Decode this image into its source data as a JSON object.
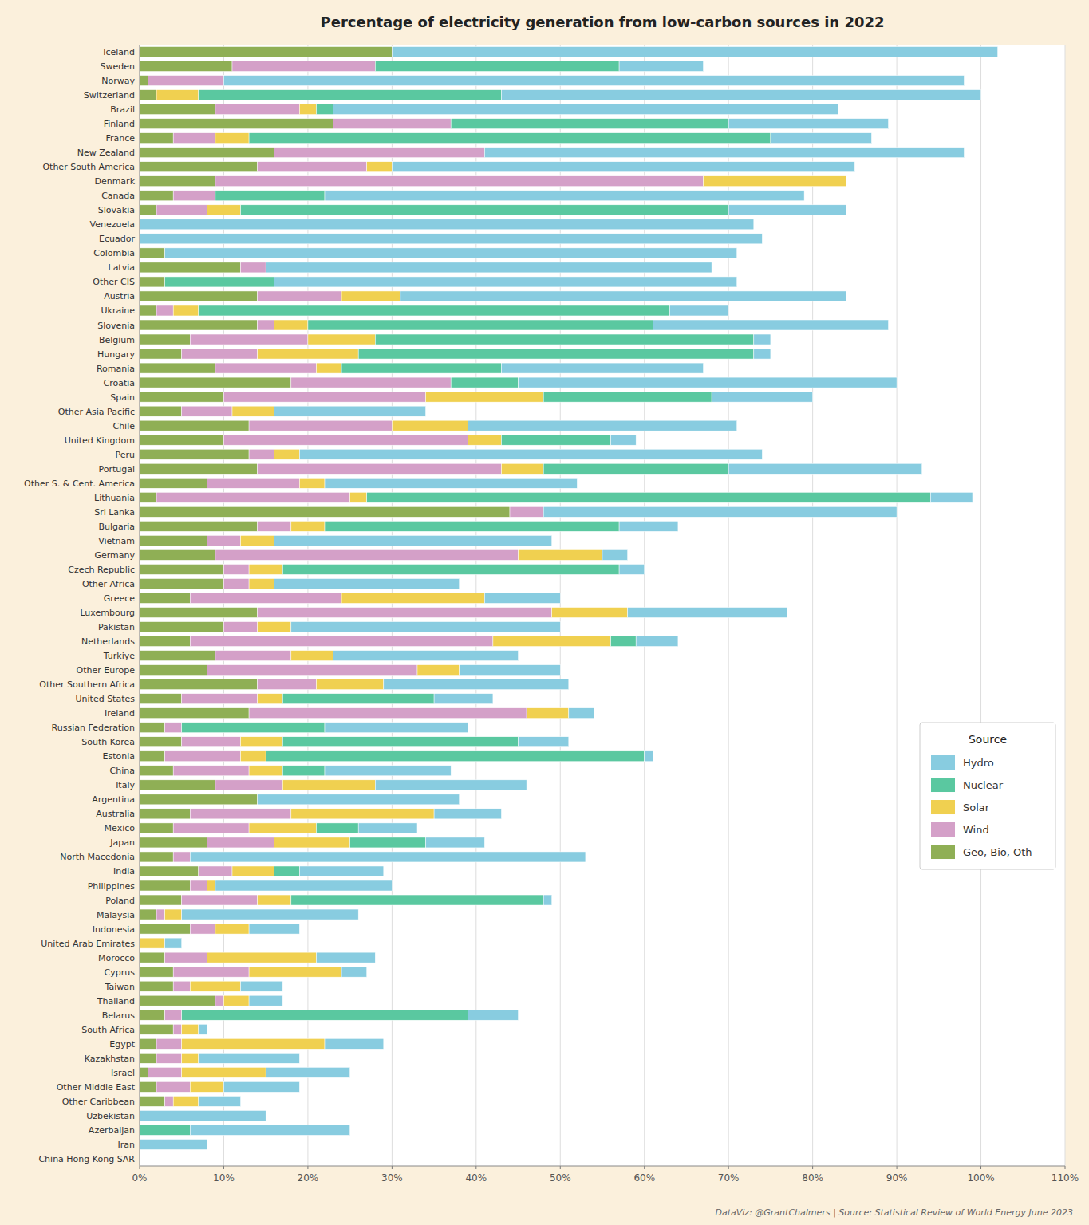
{
  "chart_data": {
    "type": "bar",
    "orientation": "horizontal",
    "stacked": true,
    "title": "Percentage of electricity generation from low-carbon sources in 2022",
    "subtitle": "DataViz: @GrantChalmers | Source: Statistical Review of World Energy June 2023",
    "legend_title": "Source",
    "legend": "right",
    "grid": true,
    "categories": [
      "Iceland",
      "Sweden",
      "Norway",
      "Switzerland",
      "Brazil",
      "Finland",
      "France",
      "New Zealand",
      "Other South America",
      "Denmark",
      "Canada",
      "Slovakia",
      "Venezuela",
      "Ecuador",
      "Colombia",
      "Latvia",
      "Other CIS",
      "Austria",
      "Ukraine",
      "Slovenia",
      "Belgium",
      "Hungary",
      "Romania",
      "Croatia",
      "Spain",
      "Other Asia Pacific",
      "Chile",
      "United Kingdom",
      "Peru",
      "Portugal",
      "Other S. & Cent. America",
      "Lithuania",
      "Sri Lanka",
      "Bulgaria",
      "Vietnam",
      "Germany",
      "Czech Republic",
      "Other Africa",
      "Greece",
      "Luxembourg",
      "Pakistan",
      "Netherlands",
      "Turkiye",
      "Other Europe",
      "Other Southern Africa",
      "United States",
      "Ireland",
      "Russian Federation",
      "South Korea",
      "Estonia",
      "China",
      "Italy",
      "Argentina",
      "Australia",
      "Mexico",
      "Japan",
      "North Macedonia",
      "India",
      "Philippines",
      "Poland",
      "Malaysia",
      "Indonesia",
      "United Arab Emirates",
      "Morocco",
      "Cyprus",
      "Taiwan",
      "Thailand",
      "Belarus",
      "South Africa",
      "Egypt",
      "Kazakhstan",
      "Israel",
      "Other Middle East",
      "Other Caribbean",
      "Uzbekistan",
      "Azerbaijan",
      "Iran",
      "China Hong Kong SAR"
    ],
    "series": [
      {
        "name": "Geo, Bio, Oth",
        "color": "#8FAF55",
        "values": [
          30,
          11,
          1,
          2,
          9,
          23,
          4,
          16,
          14,
          9,
          4,
          2,
          0,
          0,
          3,
          12,
          3,
          14,
          2,
          14,
          6,
          5,
          9,
          18,
          10,
          5,
          13,
          10,
          13,
          14,
          8,
          2,
          44,
          14,
          8,
          9,
          10,
          10,
          6,
          14,
          10,
          6,
          9,
          8,
          14,
          5,
          13,
          3,
          5,
          3,
          4,
          9,
          14,
          6,
          4,
          8,
          4,
          7,
          6,
          5,
          2,
          6,
          0,
          3,
          4,
          4,
          9,
          3,
          4,
          2,
          2,
          1,
          2,
          3,
          0,
          0,
          0,
          0
        ]
      },
      {
        "name": "Wind",
        "color": "#D4A0C8",
        "values": [
          0,
          17,
          9,
          0,
          10,
          14,
          5,
          25,
          13,
          58,
          5,
          6,
          0,
          0,
          0,
          3,
          0,
          10,
          2,
          2,
          14,
          9,
          12,
          19,
          24,
          6,
          17,
          29,
          3,
          29,
          11,
          23,
          4,
          4,
          4,
          36,
          3,
          3,
          18,
          35,
          4,
          36,
          9,
          25,
          7,
          9,
          33,
          2,
          7,
          9,
          9,
          8,
          0,
          12,
          9,
          8,
          2,
          4,
          2,
          9,
          1,
          3,
          0,
          5,
          9,
          2,
          1,
          2,
          1,
          3,
          3,
          4,
          4,
          1,
          0,
          0,
          0,
          0
        ]
      },
      {
        "name": "Solar",
        "color": "#F0D050",
        "values": [
          0,
          0,
          0,
          5,
          2,
          0,
          4,
          0,
          3,
          17,
          0,
          4,
          0,
          0,
          0,
          0,
          0,
          7,
          3,
          4,
          8,
          12,
          3,
          0,
          14,
          5,
          9,
          4,
          3,
          5,
          3,
          2,
          0,
          4,
          4,
          10,
          4,
          3,
          17,
          9,
          4,
          14,
          5,
          5,
          8,
          3,
          5,
          0,
          5,
          3,
          4,
          11,
          0,
          17,
          8,
          9,
          0,
          5,
          1,
          4,
          2,
          4,
          3,
          13,
          11,
          6,
          3,
          0,
          2,
          17,
          2,
          10,
          4,
          3,
          0,
          0,
          0,
          0
        ]
      },
      {
        "name": "Nuclear",
        "color": "#5AC8A0",
        "values": [
          0,
          29,
          0,
          36,
          2,
          33,
          62,
          0,
          0,
          0,
          13,
          58,
          0,
          0,
          0,
          0,
          13,
          0,
          56,
          41,
          45,
          47,
          19,
          8,
          20,
          0,
          0,
          13,
          0,
          22,
          0,
          67,
          0,
          35,
          0,
          0,
          40,
          0,
          0,
          0,
          0,
          3,
          0,
          0,
          0,
          18,
          0,
          17,
          28,
          45,
          5,
          0,
          0,
          0,
          5,
          9,
          0,
          3,
          0,
          30,
          0,
          0,
          0,
          0,
          0,
          0,
          0,
          34,
          0,
          0,
          0,
          0,
          0,
          0,
          0,
          6,
          0,
          0
        ]
      },
      {
        "name": "Hydro",
        "color": "#88CCE0",
        "values": [
          72,
          10,
          88,
          57,
          60,
          19,
          12,
          57,
          55,
          0,
          57,
          14,
          73,
          74,
          68,
          53,
          55,
          53,
          7,
          28,
          2,
          2,
          24,
          45,
          12,
          18,
          32,
          3,
          55,
          23,
          30,
          5,
          42,
          7,
          33,
          3,
          3,
          22,
          9,
          19,
          32,
          5,
          22,
          12,
          22,
          7,
          3,
          17,
          6,
          1,
          15,
          18,
          24,
          8,
          7,
          7,
          47,
          10,
          21,
          1,
          21,
          6,
          2,
          7,
          3,
          5,
          4,
          6,
          1,
          7,
          12,
          10,
          9,
          5,
          15,
          19,
          8,
          0
        ]
      }
    ],
    "xlim": [
      0,
      110
    ],
    "xticks": [
      {
        "value": 0,
        "label": "0%"
      },
      {
        "value": 10,
        "label": "10%"
      },
      {
        "value": 20,
        "label": "20%"
      },
      {
        "value": 30,
        "label": "30%"
      },
      {
        "value": 40,
        "label": "40%"
      },
      {
        "value": 50,
        "label": "50%"
      },
      {
        "value": 60,
        "label": "60%"
      },
      {
        "value": 70,
        "label": "70%"
      },
      {
        "value": 80,
        "label": "80%"
      },
      {
        "value": 90,
        "label": "90%"
      },
      {
        "value": 100,
        "label": "100%"
      },
      {
        "value": 110,
        "label": "110%"
      }
    ]
  }
}
